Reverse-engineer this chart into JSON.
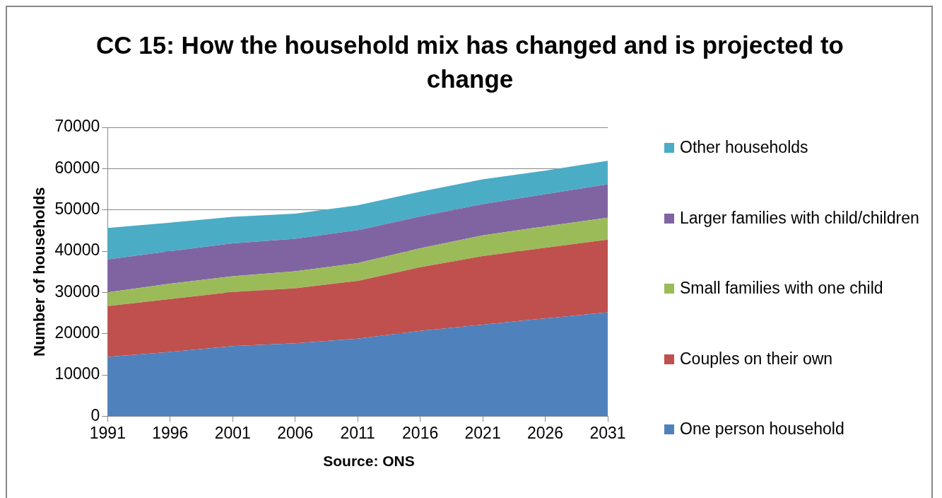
{
  "chart_data": {
    "type": "area",
    "title": "CC 15: How the household mix has changed and is projected to change",
    "ylabel": "Number of households",
    "annotations": [
      "Source: ONS"
    ],
    "categories": [
      "1991",
      "1996",
      "2001",
      "2006",
      "2011",
      "2016",
      "2021",
      "2026",
      "2031"
    ],
    "stacked": true,
    "series": [
      {
        "name": "One person household",
        "color": "#4f81bd",
        "values": [
          14400,
          15600,
          17000,
          17700,
          18800,
          20700,
          22200,
          23700,
          25200
        ]
      },
      {
        "name": "Couples on their own",
        "color": "#c0504d",
        "values": [
          12300,
          12800,
          13100,
          13300,
          14000,
          15400,
          16600,
          17100,
          17600
        ]
      },
      {
        "name": "Small families with one child",
        "color": "#9bbb59",
        "values": [
          3300,
          3700,
          3800,
          4100,
          4300,
          4600,
          5000,
          5200,
          5300
        ]
      },
      {
        "name": "Larger families with child/children",
        "color": "#8064a2",
        "values": [
          8000,
          7900,
          8000,
          7900,
          8000,
          7700,
          7600,
          7800,
          8100
        ]
      },
      {
        "name": "Other households",
        "color": "#4bacc6",
        "values": [
          7600,
          6900,
          6400,
          6100,
          6000,
          6000,
          6000,
          5700,
          5700
        ]
      }
    ],
    "ylim": [
      0,
      70000
    ],
    "yticks": [
      0,
      10000,
      20000,
      30000,
      40000,
      50000,
      60000,
      70000
    ],
    "grid": "y",
    "legend": "right"
  }
}
